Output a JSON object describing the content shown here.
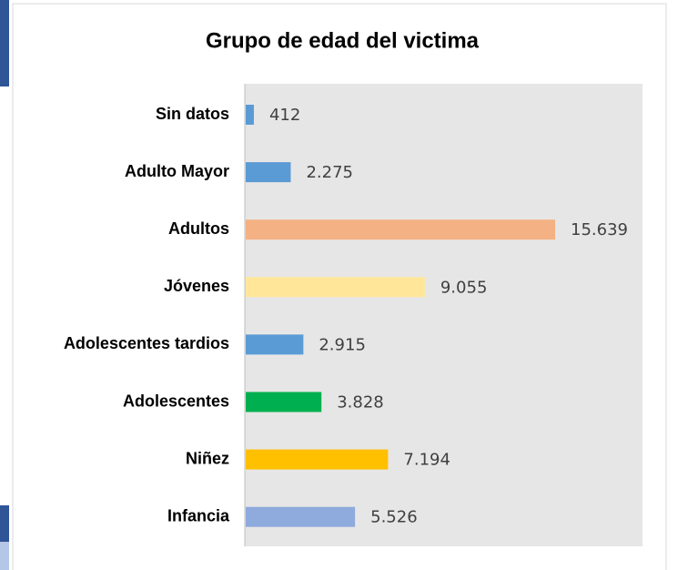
{
  "chart_data": {
    "type": "bar",
    "orientation": "horizontal",
    "title": "Grupo de edad del victima",
    "categories": [
      "Sin datos",
      "Adulto Mayor",
      "Adultos",
      "Jóvenes",
      "Adolescentes tardios",
      "Adolescentes",
      "Niñez",
      "Infancia"
    ],
    "values": [
      412,
      2275,
      15639,
      9055,
      2915,
      3828,
      7194,
      5526
    ],
    "value_labels": [
      "412",
      "2.275",
      "15.639",
      "9.055",
      "2.915",
      "3.828",
      "7.194",
      "5.526"
    ],
    "colors": [
      "#5b9bd5",
      "#5b9bd5",
      "#f4b183",
      "#ffe699",
      "#5b9bd5",
      "#00b050",
      "#ffc000",
      "#8faadc"
    ]
  }
}
